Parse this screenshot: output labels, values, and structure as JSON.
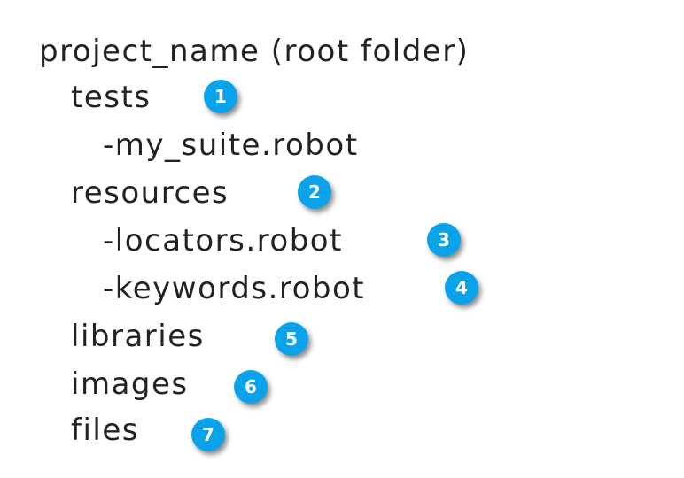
{
  "tree": {
    "root": "project_name (root folder)",
    "items": [
      {
        "label": "tests",
        "badge": "1"
      },
      {
        "label": "-my_suite.robot",
        "badge": ""
      },
      {
        "label": "resources",
        "badge": "2"
      },
      {
        "label": "-locators.robot",
        "badge": "3"
      },
      {
        "label": "-keywords.robot",
        "badge": "4"
      },
      {
        "label": "libraries",
        "badge": "5"
      },
      {
        "label": "images",
        "badge": "6"
      },
      {
        "label": "files",
        "badge": "7"
      }
    ]
  },
  "colors": {
    "badge": "#0aa2e8",
    "text": "#222222"
  }
}
